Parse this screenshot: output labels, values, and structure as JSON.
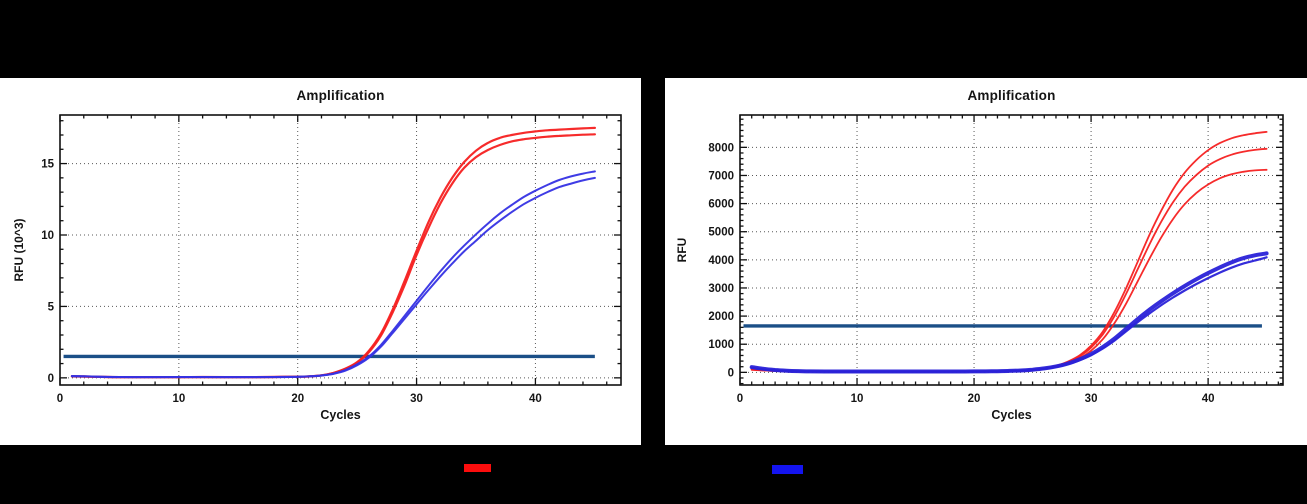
{
  "page": {
    "background": "#000000",
    "panel_background": "#ffffff"
  },
  "colors": {
    "red_series": "#f52020",
    "blue_series_left": "#3532e4",
    "blue_series_right": "#2a22d8",
    "threshold_line": "#1b4f87",
    "axis": "#111111",
    "grid": "#3c3c3c"
  },
  "legend": {
    "items": [
      {
        "name": "red-series",
        "color": "#fb0d0d"
      },
      {
        "name": "blue-series",
        "color": "#1414f0"
      }
    ]
  },
  "chart_data": [
    {
      "type": "line",
      "title": "Amplification",
      "xlabel": "Cycles",
      "ylabel": "RFU (10^3)",
      "xlim": [
        0,
        47.2
      ],
      "ylim": [
        -0.5,
        18.4
      ],
      "xticks": [
        0,
        10,
        20,
        30,
        40
      ],
      "yticks": [
        0,
        5,
        10,
        15
      ],
      "x_minor_step": 2,
      "y_minor_step": 1,
      "grid": "dotted",
      "legend_position": "none",
      "threshold": {
        "value": 1.5,
        "color": "#1b4f87",
        "x_start": 0.3,
        "x_end": 45
      },
      "cycles": [
        1,
        2,
        3,
        4,
        5,
        6,
        8,
        10,
        12,
        14,
        16,
        18,
        20,
        21,
        22,
        23,
        24,
        25,
        26,
        27,
        28,
        29,
        30,
        31,
        32,
        33,
        34,
        35,
        36,
        37,
        38,
        39,
        40,
        41,
        42,
        43,
        44,
        45
      ],
      "series": [
        {
          "name": "red-replicate-1",
          "color": "#f52020",
          "width": 2.2,
          "values": [
            0.12,
            0.1,
            0.08,
            0.06,
            0.05,
            0.05,
            0.05,
            0.05,
            0.06,
            0.05,
            0.05,
            0.06,
            0.08,
            0.1,
            0.18,
            0.35,
            0.65,
            1.1,
            1.9,
            3.1,
            4.8,
            6.8,
            8.9,
            10.9,
            12.6,
            14.0,
            15.1,
            15.9,
            16.45,
            16.8,
            17.0,
            17.15,
            17.25,
            17.33,
            17.38,
            17.42,
            17.46,
            17.5
          ]
        },
        {
          "name": "red-replicate-2",
          "color": "#f52020",
          "width": 2.2,
          "values": [
            0.1,
            0.09,
            0.07,
            0.06,
            0.05,
            0.05,
            0.05,
            0.05,
            0.05,
            0.05,
            0.05,
            0.06,
            0.08,
            0.1,
            0.17,
            0.33,
            0.62,
            1.05,
            1.8,
            2.95,
            4.6,
            6.5,
            8.6,
            10.5,
            12.2,
            13.6,
            14.7,
            15.45,
            15.95,
            16.3,
            16.55,
            16.7,
            16.8,
            16.88,
            16.94,
            16.98,
            17.02,
            17.05
          ]
        },
        {
          "name": "blue-replicate-1",
          "color": "#3532e4",
          "width": 2.0,
          "values": [
            0.13,
            0.11,
            0.09,
            0.07,
            0.06,
            0.05,
            0.05,
            0.06,
            0.06,
            0.05,
            0.05,
            0.06,
            0.08,
            0.11,
            0.17,
            0.3,
            0.55,
            0.95,
            1.5,
            2.3,
            3.3,
            4.35,
            5.4,
            6.45,
            7.45,
            8.4,
            9.25,
            10.05,
            10.8,
            11.5,
            12.1,
            12.65,
            13.1,
            13.5,
            13.85,
            14.1,
            14.3,
            14.45
          ]
        },
        {
          "name": "blue-replicate-2",
          "color": "#3532e4",
          "width": 2.0,
          "values": [
            0.11,
            0.1,
            0.08,
            0.06,
            0.05,
            0.05,
            0.05,
            0.05,
            0.05,
            0.05,
            0.05,
            0.05,
            0.07,
            0.1,
            0.16,
            0.28,
            0.5,
            0.88,
            1.42,
            2.18,
            3.15,
            4.15,
            5.15,
            6.15,
            7.1,
            8.0,
            8.85,
            9.6,
            10.35,
            11.0,
            11.6,
            12.15,
            12.6,
            13.0,
            13.35,
            13.6,
            13.82,
            14.0
          ]
        }
      ]
    },
    {
      "type": "line",
      "title": "Amplification",
      "xlabel": "Cycles",
      "ylabel": "RFU",
      "xlim": [
        0,
        46.4
      ],
      "ylim": [
        -450,
        9150
      ],
      "xticks": [
        0,
        10,
        20,
        30,
        40
      ],
      "yticks": [
        0,
        1000,
        2000,
        3000,
        4000,
        5000,
        6000,
        7000,
        8000
      ],
      "x_minor_step": 1,
      "y_minor_step": 200,
      "grid": "dotted",
      "legend_position": "none",
      "threshold": {
        "value": 1650,
        "color": "#1b4f87",
        "x_start": 0.3,
        "x_end": 44.6
      },
      "cycles": [
        1,
        2,
        3,
        4,
        5,
        6,
        8,
        10,
        12,
        14,
        16,
        18,
        20,
        21,
        22,
        23,
        24,
        25,
        26,
        27,
        28,
        29,
        30,
        31,
        32,
        33,
        34,
        35,
        36,
        37,
        38,
        39,
        40,
        41,
        42,
        43,
        44,
        45
      ],
      "series": [
        {
          "name": "red-replicate-1",
          "color": "#f52020",
          "width": 1.8,
          "values": [
            120,
            80,
            55,
            42,
            34,
            30,
            26,
            25,
            25,
            25,
            25,
            26,
            28,
            31,
            36,
            45,
            62,
            90,
            140,
            230,
            380,
            600,
            950,
            1450,
            2150,
            3000,
            3950,
            4900,
            5750,
            6500,
            7100,
            7550,
            7900,
            8150,
            8320,
            8430,
            8500,
            8550
          ]
        },
        {
          "name": "red-replicate-2",
          "color": "#f52020",
          "width": 1.8,
          "values": [
            100,
            70,
            50,
            40,
            33,
            29,
            26,
            25,
            25,
            25,
            25,
            26,
            28,
            30,
            34,
            43,
            58,
            84,
            130,
            210,
            350,
            560,
            880,
            1350,
            2000,
            2800,
            3680,
            4560,
            5360,
            6050,
            6600,
            7020,
            7350,
            7580,
            7740,
            7840,
            7910,
            7950
          ]
        },
        {
          "name": "red-replicate-3",
          "color": "#f52020",
          "width": 1.8,
          "values": [
            90,
            65,
            48,
            38,
            32,
            28,
            25,
            24,
            24,
            24,
            24,
            25,
            27,
            29,
            33,
            41,
            54,
            77,
            118,
            190,
            310,
            490,
            770,
            1180,
            1750,
            2450,
            3250,
            4050,
            4800,
            5450,
            5980,
            6380,
            6680,
            6900,
            7040,
            7130,
            7180,
            7200
          ]
        },
        {
          "name": "blue-replicate-1",
          "color": "#2a22d8",
          "width": 4.0,
          "values": [
            185,
            125,
            85,
            58,
            43,
            35,
            30,
            29,
            29,
            29,
            29,
            30,
            32,
            35,
            40,
            50,
            66,
            95,
            140,
            210,
            310,
            460,
            650,
            900,
            1200,
            1550,
            1900,
            2230,
            2530,
            2810,
            3070,
            3310,
            3530,
            3730,
            3910,
            4060,
            4160,
            4230
          ]
        },
        {
          "name": "blue-replicate-2",
          "color": "#2a22d8",
          "width": 2.2,
          "values": [
            160,
            110,
            75,
            52,
            39,
            32,
            28,
            27,
            27,
            27,
            27,
            28,
            30,
            33,
            38,
            47,
            62,
            88,
            130,
            195,
            290,
            430,
            610,
            845,
            1130,
            1460,
            1790,
            2100,
            2390,
            2660,
            2910,
            3140,
            3350,
            3545,
            3720,
            3865,
            3975,
            4090
          ]
        }
      ]
    }
  ]
}
